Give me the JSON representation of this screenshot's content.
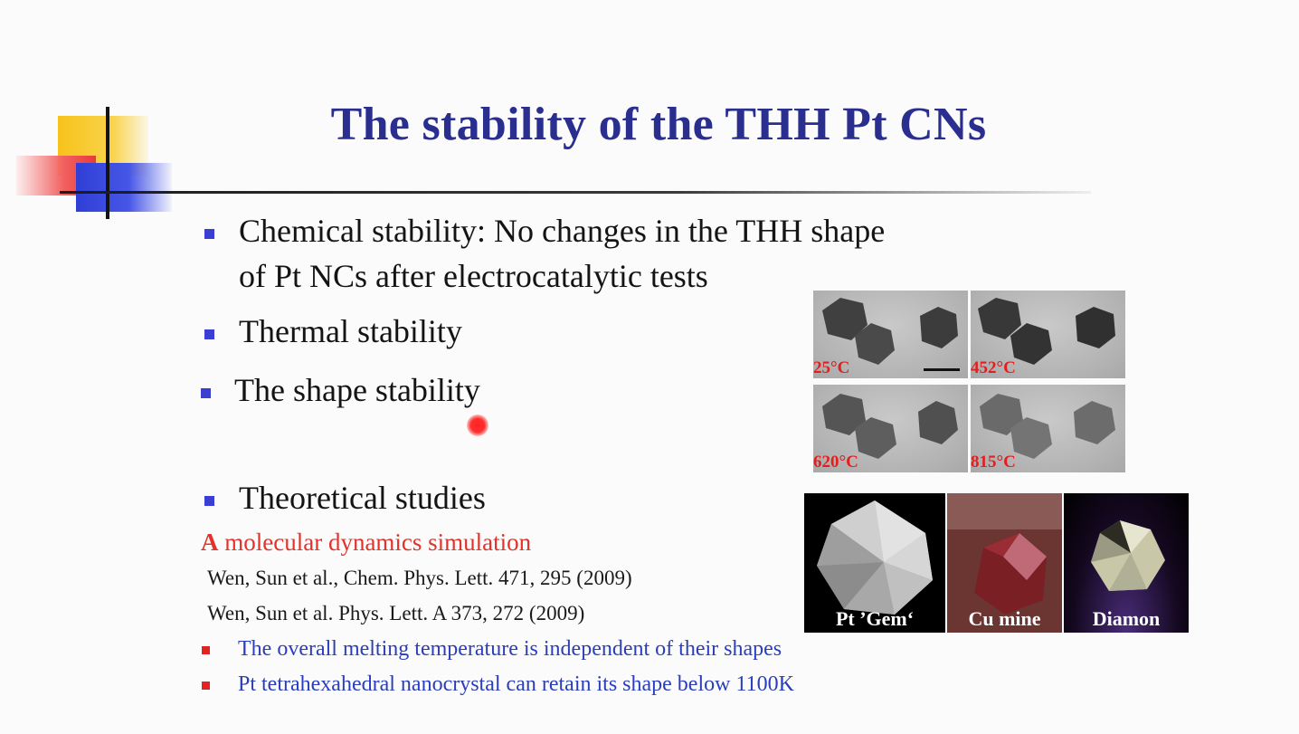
{
  "slide": {
    "title": "The stability of the THH Pt CNs",
    "bullets": [
      "Chemical stability: No changes in the THH shape",
      "of Pt NCs after electrocatalytic tests",
      "Thermal stability",
      "The shape stability",
      "Theoretical studies"
    ],
    "simulation": {
      "lead": "A",
      "rest": " molecular dynamics simulation"
    },
    "references": [
      "Wen, Sun et al., Chem. Phys. Lett. 471, 295 (2009)",
      "Wen, Sun et al. Phys. Lett. A 373, 272 (2009)"
    ],
    "notes": [
      "The overall melting temperature is independent of their shapes",
      "Pt tetrahexahedral nanocrystal can retain its shape below 1100K"
    ],
    "tem_panels": [
      {
        "temp": "25°C"
      },
      {
        "temp": "452°C"
      },
      {
        "temp": "620°C"
      },
      {
        "temp": "815°C"
      }
    ],
    "gem_panels": [
      {
        "label": "Pt ’Gem‘"
      },
      {
        "label": "Cu mine"
      },
      {
        "label": "Diamon"
      }
    ]
  },
  "colors": {
    "title": "#2a2f8f",
    "bullet": "#3b3fd1",
    "red_text": "#e4322b",
    "blue_text": "#2a3ebb",
    "temp_label": "#e11f1f"
  }
}
